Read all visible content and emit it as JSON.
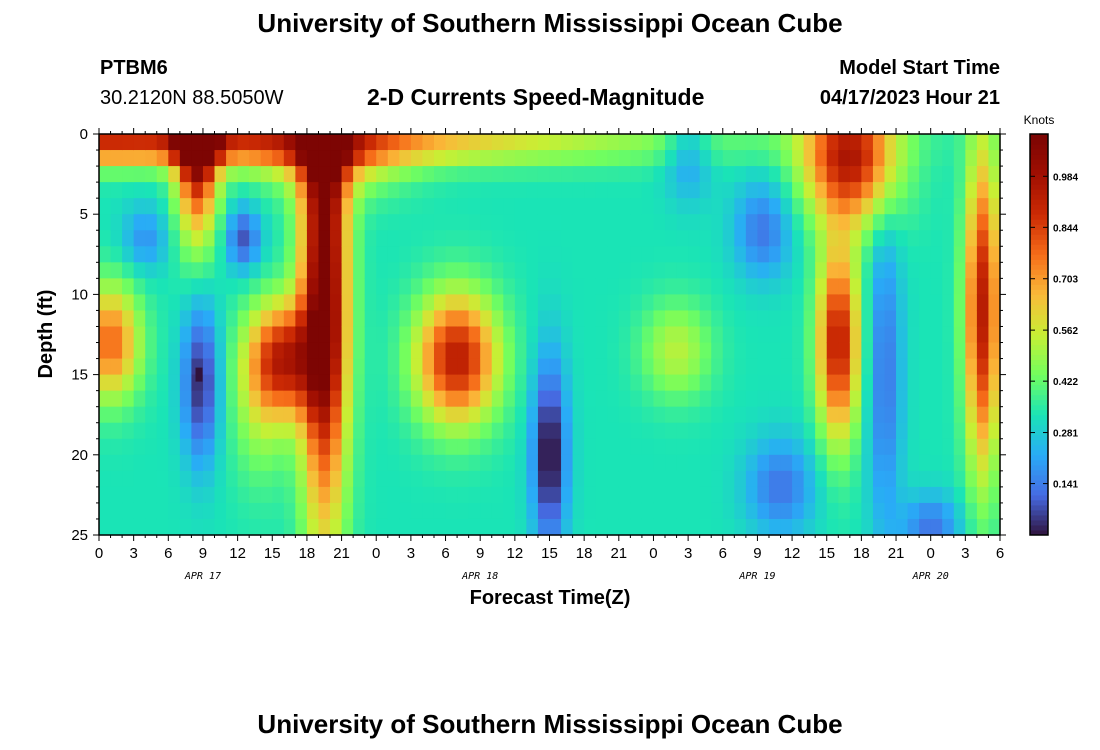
{
  "page": {
    "title": "University of Southern Mississippi Ocean Cube",
    "station": "PTBM6",
    "coordinates": "30.2120N  88.5050W",
    "subtitle": "2-D Currents Speed-Magnitude",
    "model_start_label": "Model Start Time",
    "model_start_value": "04/17/2023 Hour 21",
    "footer_title": "University of Southern Mississippi Ocean Cube"
  },
  "chart_data": {
    "type": "heatmap",
    "title": "2-D Currents Speed-Magnitude",
    "xlabel": "Forecast Time(Z)",
    "ylabel": "Depth (ft)",
    "x_ticks": [
      "0",
      "3",
      "6",
      "9",
      "12",
      "15",
      "18",
      "21",
      "0",
      "3",
      "6",
      "9",
      "12",
      "15",
      "18",
      "21",
      "0",
      "3",
      "6",
      "9",
      "12",
      "15",
      "18",
      "21",
      "0",
      "3",
      "6"
    ],
    "x_range_hours": [
      0,
      78
    ],
    "date_labels": [
      {
        "label": "APR 17",
        "hour": 9
      },
      {
        "label": "APR 18",
        "hour": 33
      },
      {
        "label": "APR 19",
        "hour": 57
      },
      {
        "label": "APR 20",
        "hour": 72
      }
    ],
    "y_ticks": [
      0,
      5,
      10,
      15,
      20,
      25
    ],
    "ylim": [
      0,
      25
    ],
    "y_inverted": true,
    "colorbar": {
      "label": "Knots",
      "ticks": [
        "0.141",
        "0.281",
        "0.422",
        "0.562",
        "0.703",
        "0.844",
        "0.984"
      ],
      "range": [
        0.0,
        1.1
      ]
    },
    "field_components": [
      {
        "hour": 8.5,
        "hour_width": 1.8,
        "depth": 0,
        "depth_width": 6,
        "value": 0.75
      },
      {
        "hour": 0,
        "hour_width": 40,
        "depth": 0.5,
        "depth_width": 1.5,
        "value": 0.55
      },
      {
        "hour": 20,
        "hour_width": 6,
        "depth": 1.5,
        "depth_width": 2.5,
        "value": 0.25
      },
      {
        "hour": 1,
        "hour_width": 2.5,
        "depth": 13,
        "depth_width": 3.5,
        "value": 0.45
      },
      {
        "hour": 4,
        "hour_width": 2,
        "depth": 6.5,
        "depth_width": 2,
        "value": -0.15
      },
      {
        "hour": 12.5,
        "hour_width": 1.5,
        "depth": 6.5,
        "depth_width": 2,
        "value": -0.25
      },
      {
        "hour": 8.8,
        "hour_width": 1.6,
        "depth": 15.5,
        "depth_width": 5,
        "value": -0.3
      },
      {
        "hour": 16,
        "hour_width": 3,
        "depth": 14,
        "depth_width": 3.5,
        "value": 0.55
      },
      {
        "hour": 31,
        "hour_width": 3.5,
        "depth": 14,
        "depth_width": 4,
        "value": 0.6
      },
      {
        "hour": 19.5,
        "hour_width": 2,
        "depth": 9,
        "depth_width": 15,
        "value": 0.8
      },
      {
        "hour": 14,
        "hour_width": 2.5,
        "depth": 17,
        "depth_width": 5,
        "value": 0.15
      },
      {
        "hour": 39,
        "hour_width": 1.5,
        "depth": 20,
        "depth_width": 6,
        "value": -0.35
      },
      {
        "hour": 50,
        "hour_width": 3,
        "depth": 13.5,
        "depth_width": 3,
        "value": 0.2
      },
      {
        "hour": 51,
        "hour_width": 2,
        "depth": 1,
        "depth_width": 3,
        "value": -0.15
      },
      {
        "hour": 57.5,
        "hour_width": 2.5,
        "depth": 6,
        "depth_width": 3,
        "value": -0.2
      },
      {
        "hour": 59,
        "hour_width": 3,
        "depth": 22,
        "depth_width": 3,
        "value": -0.2
      },
      {
        "hour": 65,
        "hour_width": 4,
        "depth": 1.5,
        "depth_width": 4,
        "value": 0.6
      },
      {
        "hour": 64,
        "hour_width": 1.8,
        "depth": 13,
        "depth_width": 6,
        "value": 0.6
      },
      {
        "hour": 68,
        "hour_width": 1.5,
        "depth": 15,
        "depth_width": 10,
        "value": -0.2
      },
      {
        "hour": 72,
        "hour_width": 2.5,
        "depth": 24.5,
        "depth_width": 2,
        "value": -0.2
      },
      {
        "hour": 76.5,
        "hour_width": 1.5,
        "depth": 11,
        "depth_width": 10,
        "value": 0.6
      }
    ],
    "field_base": 0.33,
    "min_marker": {
      "hour": 8.7,
      "depth": 15,
      "value": 0.0
    }
  }
}
